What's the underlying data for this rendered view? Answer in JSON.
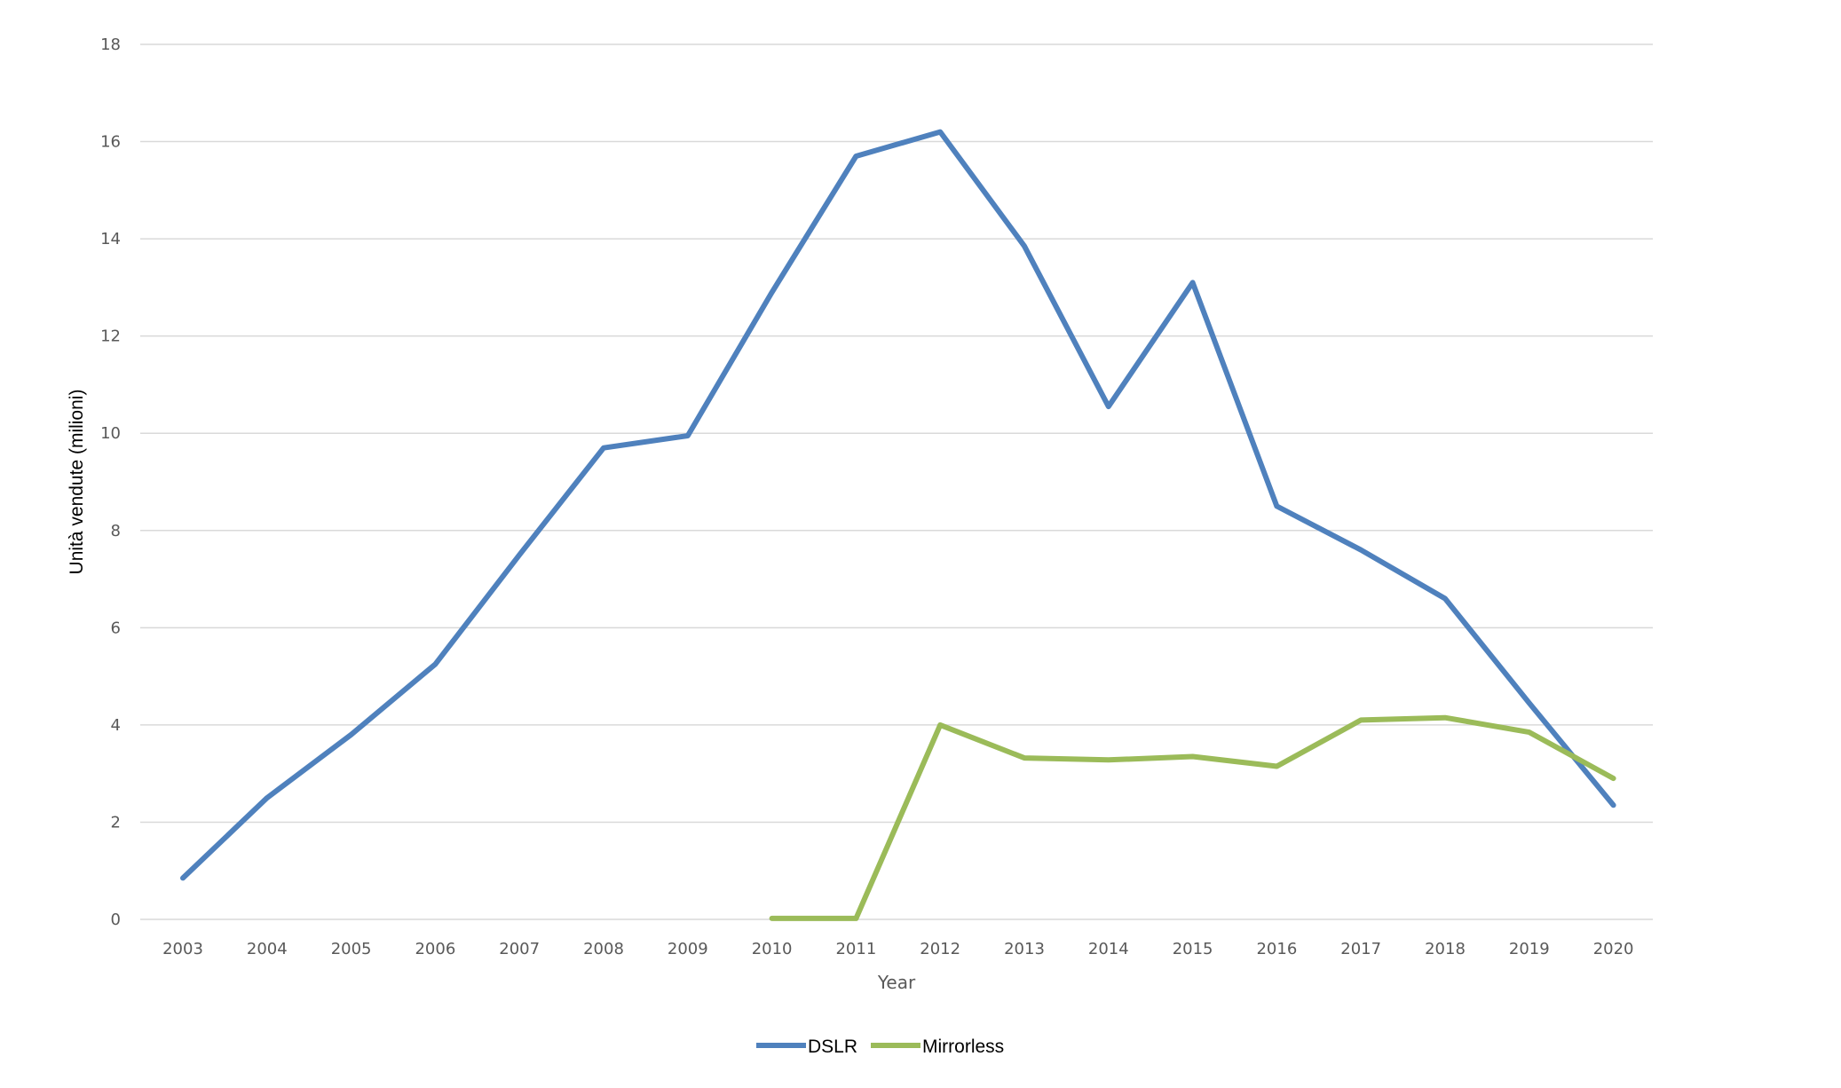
{
  "chart_data": {
    "type": "line",
    "title": "",
    "xlabel": "Year",
    "ylabel": "Unità vendute (milioni)",
    "ylim": [
      0,
      18
    ],
    "yticks": [
      0,
      2,
      4,
      6,
      8,
      10,
      12,
      14,
      16,
      18
    ],
    "grid": true,
    "legend_position": "bottom",
    "categories": [
      "2003",
      "2004",
      "2005",
      "2006",
      "2007",
      "2008",
      "2009",
      "2010",
      "2011",
      "2012",
      "2013",
      "2014",
      "2015",
      "2016",
      "2017",
      "2018",
      "2019",
      "2020"
    ],
    "series": [
      {
        "name": "DSLR",
        "color": "#4f81bd",
        "values": [
          0.85,
          2.5,
          3.8,
          5.25,
          7.5,
          9.7,
          9.95,
          12.9,
          15.7,
          16.2,
          13.85,
          10.55,
          13.1,
          8.5,
          7.6,
          6.6,
          4.45,
          2.35
        ]
      },
      {
        "name": "Mirrorless",
        "color": "#9bbb59",
        "values": [
          null,
          null,
          null,
          null,
          null,
          null,
          null,
          0.02,
          0.02,
          4.0,
          3.32,
          3.28,
          3.35,
          3.15,
          4.1,
          4.15,
          3.85,
          2.9
        ]
      }
    ]
  }
}
